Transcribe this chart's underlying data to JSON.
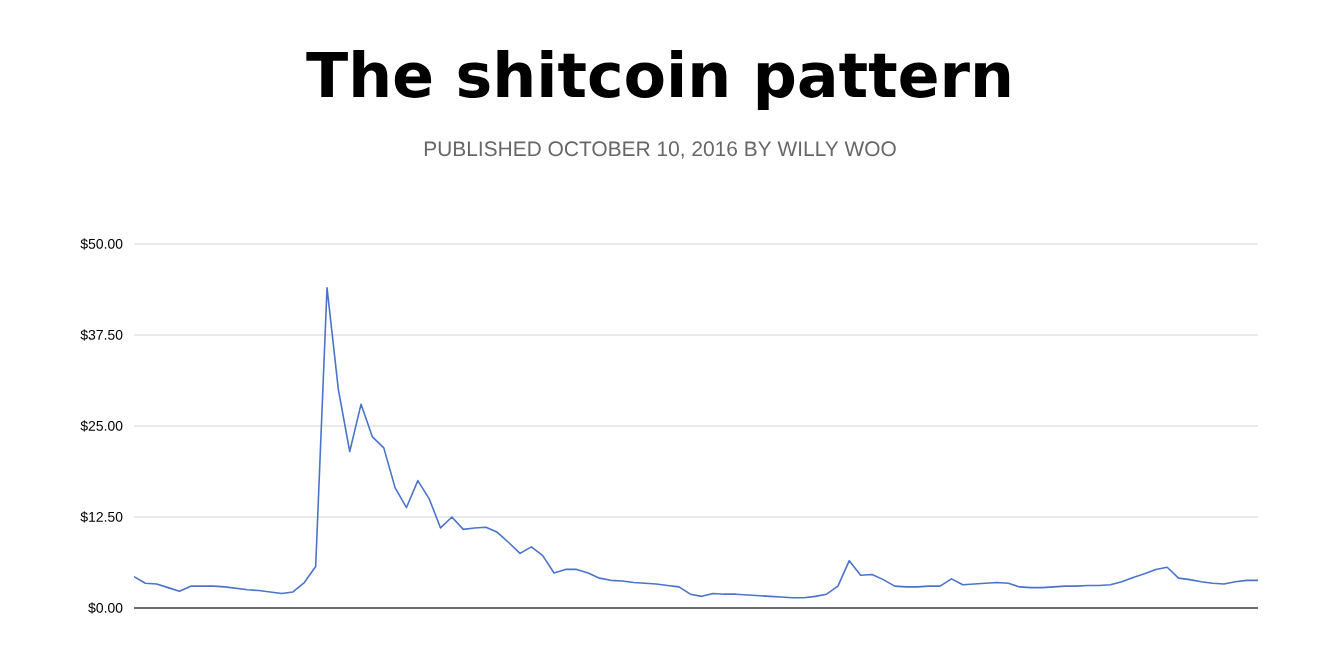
{
  "chart_data": {
    "type": "line",
    "title": "The shitcoin pattern",
    "subtitle": "PUBLISHED OCTOBER 10, 2016 BY WILLY WOO",
    "categories": [
      null,
      null,
      null,
      null,
      null,
      null,
      null,
      null,
      null,
      null,
      null,
      null,
      null,
      null,
      null,
      null,
      null,
      null,
      null,
      null,
      null,
      null,
      null,
      null,
      null,
      null,
      null,
      null,
      null,
      null,
      null,
      null,
      null,
      null,
      null,
      null,
      null,
      null,
      null,
      null,
      null,
      null,
      null,
      null,
      null,
      null,
      null,
      null,
      null,
      null,
      null,
      null,
      null,
      null,
      null,
      null,
      null,
      null,
      null,
      null,
      null,
      null,
      null,
      null,
      null,
      null,
      null,
      null,
      null,
      null,
      null,
      null,
      null,
      null,
      null,
      null,
      null,
      null,
      null,
      null,
      null,
      null,
      null,
      null,
      null,
      null,
      null,
      null,
      null,
      null,
      null,
      null,
      null,
      null,
      null,
      null,
      null,
      null,
      null,
      null
    ],
    "series": [
      {
        "color": "#4a74c9",
        "values": [
          4.3,
          3.4,
          3.3,
          2.8,
          2.3,
          3.0,
          3.0,
          3.0,
          2.9,
          2.7,
          2.5,
          2.4,
          2.2,
          2.0,
          2.2,
          3.5,
          5.7,
          44,
          30,
          21.5,
          28,
          23.5,
          22,
          16.5,
          13.8,
          17.5,
          15,
          11,
          12.5,
          10.8,
          11.0,
          11.1,
          10.4,
          9,
          7.5,
          8.4,
          7.2,
          4.8,
          5.3,
          5.3,
          4.8,
          4.1,
          3.8,
          3.7,
          3.5,
          3.4,
          3.3,
          3.1,
          2.9,
          1.9,
          1.6,
          2.0,
          1.9,
          1.9,
          1.8,
          1.7,
          1.6,
          1.5,
          1.4,
          1.4,
          1.6,
          1.9,
          3.0,
          6.5,
          4.5,
          4.6,
          3.9,
          3.0,
          2.9,
          2.9,
          3.0,
          3.0,
          4.0,
          3.2,
          3.3,
          3.4,
          3.5,
          3.4,
          2.9,
          2.8,
          2.8,
          2.9,
          3.0,
          3.0,
          3.1,
          3.1,
          3.2,
          3.6,
          4.2,
          4.7,
          5.3,
          5.6,
          4.1,
          3.9,
          3.6,
          3.4,
          3.3,
          3.6,
          3.8,
          3.8
        ]
      }
    ],
    "ylim": [
      0,
      50
    ],
    "yticks": [
      {
        "value": 0,
        "label": "$0.00"
      },
      {
        "value": 12.5,
        "label": "$12.50"
      },
      {
        "value": 25,
        "label": "$25.00"
      },
      {
        "value": 37.5,
        "label": "$37.50"
      },
      {
        "value": 50,
        "label": "$50.00"
      }
    ],
    "grid": "y",
    "tick_labels": "y",
    "marker": "none",
    "line_style": "solid"
  }
}
